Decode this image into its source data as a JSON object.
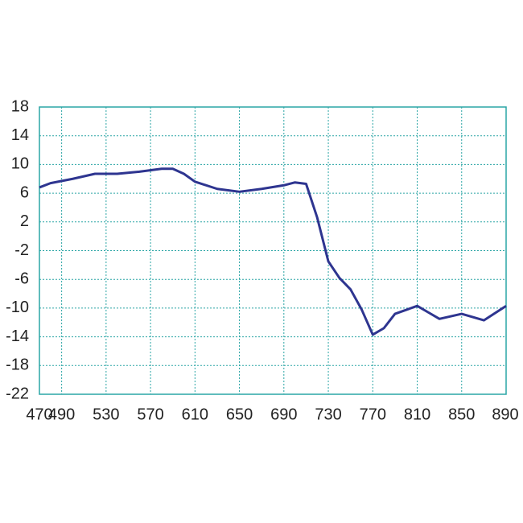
{
  "chart_data": {
    "type": "line",
    "x": [
      470,
      480,
      500,
      520,
      540,
      560,
      580,
      590,
      600,
      610,
      630,
      650,
      670,
      690,
      700,
      710,
      720,
      730,
      740,
      750,
      760,
      770,
      780,
      790,
      810,
      820,
      830,
      850,
      870,
      890
    ],
    "series": [
      {
        "color": "#2e3590",
        "values": [
          6.8,
          7.4,
          8.0,
          8.7,
          8.7,
          9.0,
          9.4,
          9.4,
          8.7,
          7.6,
          6.6,
          6.2,
          6.6,
          7.1,
          7.5,
          7.3,
          2.6,
          -3.5,
          -5.8,
          -7.4,
          -10.2,
          -13.7,
          -12.8,
          -10.8,
          -9.7,
          -10.6,
          -11.5,
          -10.8,
          -11.7,
          -9.7
        ]
      }
    ],
    "xlim": [
      470,
      890
    ],
    "xticks": [
      470,
      490,
      530,
      570,
      610,
      650,
      690,
      730,
      770,
      810,
      850,
      890
    ],
    "ylim": [
      -22,
      18
    ],
    "yticks": [
      18,
      14,
      10,
      6,
      2,
      -2,
      -6,
      -10,
      -14,
      -18,
      -22
    ],
    "grid": true,
    "grid_color": "#2aa5a5"
  }
}
